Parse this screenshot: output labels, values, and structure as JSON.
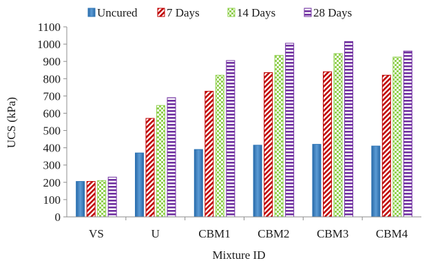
{
  "chart_data": {
    "type": "bar",
    "title": "",
    "xlabel": "Mixture ID",
    "ylabel": "UCS (kPa)",
    "ylim": [
      0,
      1100
    ],
    "yticks": [
      0,
      100,
      200,
      300,
      400,
      500,
      600,
      700,
      800,
      900,
      1000,
      1100
    ],
    "categories": [
      "VS",
      "U",
      "CBM1",
      "CBM2",
      "CBM3",
      "CBM4"
    ],
    "grid": false,
    "legend_position": "top",
    "series": [
      {
        "name": "Uncured",
        "color": "#2e75b6",
        "pattern": "solid",
        "values": [
          205,
          370,
          390,
          415,
          420,
          410
        ]
      },
      {
        "name": "7 Days",
        "color": "#c00000",
        "pattern": "diagonal-stripes",
        "values": [
          205,
          570,
          727,
          835,
          840,
          820
        ]
      },
      {
        "name": "14 Days",
        "color": "#92d050",
        "pattern": "checker",
        "values": [
          210,
          645,
          820,
          935,
          945,
          925
        ]
      },
      {
        "name": "28 Days",
        "color": "#7030a0",
        "pattern": "horizontal-stripes",
        "values": [
          230,
          690,
          905,
          1005,
          1015,
          960
        ]
      }
    ]
  }
}
